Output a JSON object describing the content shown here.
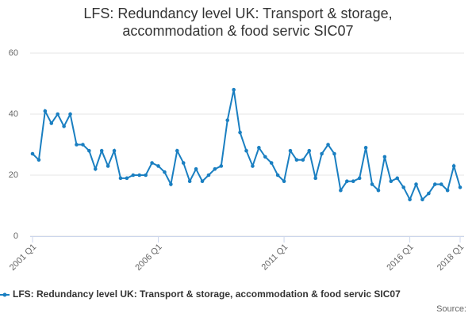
{
  "chart_data": {
    "type": "line",
    "title": "LFS: Redundancy level UK: Transport & storage, accommodation & food servic SIC07",
    "categories": [
      "2001 Q1",
      null,
      null,
      null,
      null,
      null,
      null,
      null,
      null,
      null,
      null,
      null,
      null,
      null,
      null,
      null,
      null,
      null,
      null,
      null,
      "2006 Q1",
      null,
      null,
      null,
      null,
      null,
      null,
      null,
      null,
      null,
      null,
      null,
      null,
      null,
      null,
      null,
      null,
      null,
      null,
      null,
      "2011 Q1",
      null,
      null,
      null,
      null,
      null,
      null,
      null,
      null,
      null,
      null,
      null,
      null,
      null,
      null,
      null,
      null,
      null,
      null,
      null,
      "2016 Q1",
      null,
      null,
      null,
      null,
      null,
      null,
      null,
      "2018 Q1"
    ],
    "series": [
      {
        "name": "LFS: Redundancy level UK: Transport & storage, accommodation & food servic SIC07",
        "color": "#1a7fc1",
        "values": [
          27,
          25,
          41,
          37,
          40,
          36,
          40,
          30,
          30,
          28,
          22,
          28,
          23,
          28,
          19,
          19,
          20,
          20,
          20,
          24,
          23,
          21,
          17,
          28,
          24,
          18,
          22,
          18,
          20,
          22,
          23,
          38,
          48,
          34,
          28,
          23,
          29,
          26,
          24,
          20,
          18,
          28,
          25,
          25,
          28,
          19,
          27,
          30,
          27,
          15,
          18,
          18,
          19,
          29,
          17,
          15,
          26,
          18,
          19,
          16,
          12,
          17,
          12,
          14,
          17,
          17,
          15,
          23,
          16
        ]
      }
    ],
    "ylim": [
      0,
      60
    ],
    "yticks": [
      0,
      20,
      40,
      60
    ],
    "grid": true,
    "source": "Source:"
  }
}
